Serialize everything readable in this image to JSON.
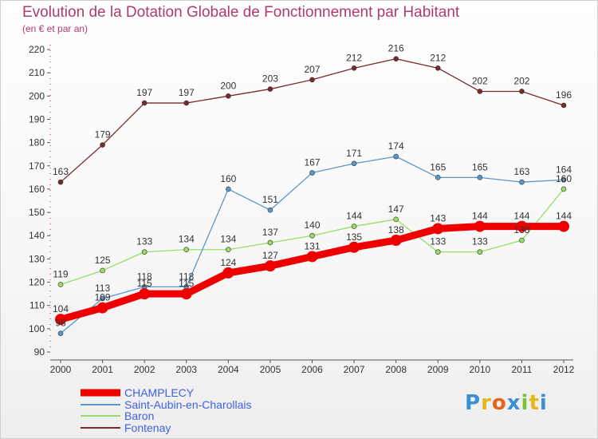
{
  "chart_data": {
    "type": "line",
    "title": "Evolution de la Dotation Globale de Fonctionnement par Habitant",
    "subtitle": "(en € et par an)",
    "x": [
      "2000",
      "2001",
      "2002",
      "2003",
      "2004",
      "2005",
      "2006",
      "2007",
      "2008",
      "2009",
      "2010",
      "2011",
      "2012"
    ],
    "ylim": [
      90,
      220
    ],
    "yticks": [
      90,
      100,
      110,
      120,
      130,
      140,
      150,
      160,
      170,
      180,
      190,
      200,
      210,
      220
    ],
    "grid": false,
    "legend_position": "bottom-left",
    "series": [
      {
        "name": "CHAMPLECY",
        "color": "#ee0000",
        "values": [
          104,
          109,
          115,
          115,
          124,
          127,
          131,
          135,
          138,
          143,
          144,
          144,
          144
        ]
      },
      {
        "name": "Saint-Aubin-en-Charollais",
        "color": "#5b97c7",
        "values": [
          98,
          113,
          118,
          118,
          160,
          151,
          167,
          171,
          174,
          165,
          165,
          163,
          164
        ]
      },
      {
        "name": "Baron",
        "color": "#99dd66",
        "values": [
          119,
          125,
          133,
          134,
          134,
          137,
          140,
          144,
          147,
          133,
          133,
          138,
          160
        ]
      },
      {
        "name": "Fontenay",
        "color": "#7a2a2a",
        "values": [
          163,
          179,
          197,
          197,
          200,
          203,
          207,
          212,
          216,
          212,
          202,
          202,
          196
        ]
      }
    ]
  },
  "logo": {
    "letters": [
      "P",
      "r",
      "o",
      "x",
      "i",
      "t",
      "i"
    ],
    "colors": [
      "#3b8fd4",
      "#e8b51b",
      "#e8641b",
      "#3b8fd4",
      "#7cbf3a",
      "#e8b51b",
      "#3b8fd4"
    ]
  }
}
